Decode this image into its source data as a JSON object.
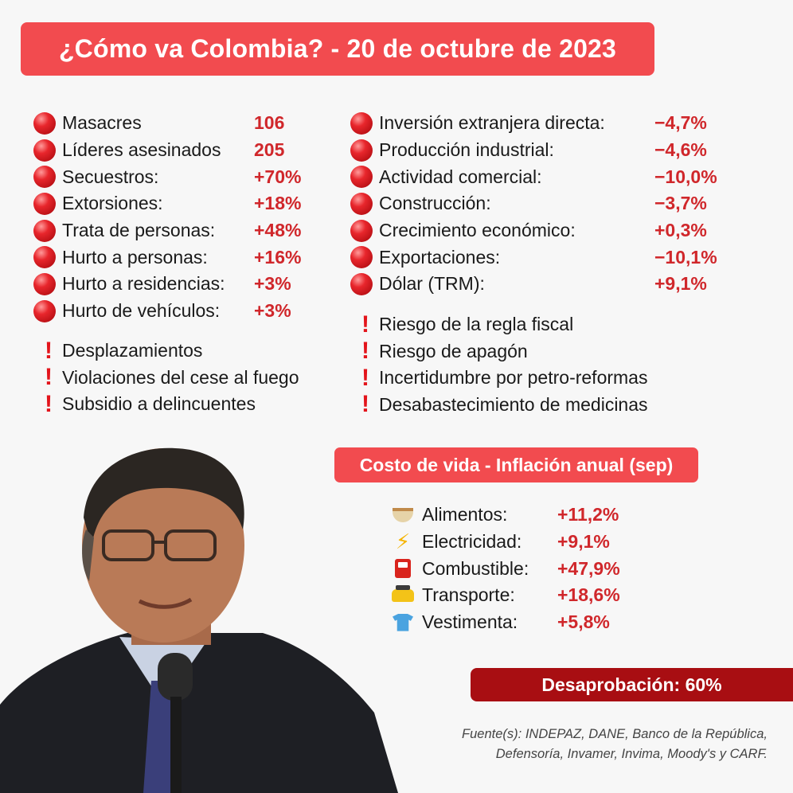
{
  "title": "¿Cómo va Colombia? - 20 de octubre de 2023",
  "security": [
    {
      "label": "Masacres",
      "value": "106"
    },
    {
      "label": "Líderes asesinados",
      "value": "205"
    },
    {
      "label": "Secuestros:",
      "value": "+70%"
    },
    {
      "label": "Extorsiones:",
      "value": "+18%"
    },
    {
      "label": "Trata de personas:",
      "value": "+48%"
    },
    {
      "label": "Hurto a personas:",
      "value": "+16%"
    },
    {
      "label": "Hurto a residencias:",
      "value": "+3%"
    },
    {
      "label": "Hurto de vehículos:",
      "value": "+3%"
    }
  ],
  "security_warnings": [
    "Desplazamientos",
    "Violaciones del cese al fuego",
    "Subsidio a delincuentes"
  ],
  "economy": [
    {
      "label": "Inversión extranjera directa:",
      "value": "−4,7%"
    },
    {
      "label": "Producción industrial:",
      "value": "−4,6%"
    },
    {
      "label": "Actividad comercial:",
      "value": "−10,0%"
    },
    {
      "label": "Construcción:",
      "value": "−3,7%"
    },
    {
      "label": "Crecimiento económico:",
      "value": "+0,3%"
    },
    {
      "label": "Exportaciones:",
      "value": "−10,1%"
    },
    {
      "label": "Dólar (TRM):",
      "value": "+9,1%"
    }
  ],
  "economy_warnings": [
    "Riesgo de la regla fiscal",
    "Riesgo de apagón",
    "Incertidumbre por petro-reformas",
    "Desabastecimiento de medicinas"
  ],
  "inflation": {
    "title": "Costo de vida - Inflación anual (sep)",
    "items": [
      {
        "icon": "food-bowl-icon",
        "label": "Alimentos:",
        "value": "+11,2%"
      },
      {
        "icon": "lightning-icon",
        "label": "Electricidad:",
        "value": "+9,1%"
      },
      {
        "icon": "fuel-pump-icon",
        "label": "Combustible:",
        "value": "+47,9%"
      },
      {
        "icon": "taxi-icon",
        "label": "Transporte:",
        "value": "+18,6%"
      },
      {
        "icon": "shirt-icon",
        "label": "Vestimenta:",
        "value": "+5,8%"
      }
    ]
  },
  "disapproval": "Desaprobación: 60%",
  "source_line1": "Fuente(s): INDEPAZ, DANE, Banco de la República,",
  "source_line2": "Defensoría, Invamer, Invima, Moody's y CARF.",
  "colors": {
    "banner": "#f24b4f",
    "value": "#d0272b",
    "disapproval": "#a80e12"
  }
}
